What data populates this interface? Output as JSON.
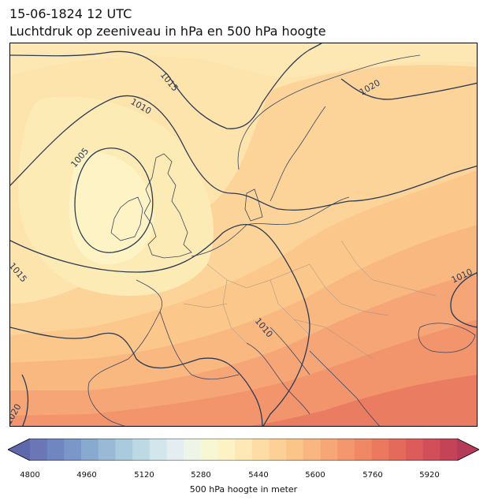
{
  "header": {
    "datetime": "15-06-1824 12 UTC",
    "subtitle": "Luchtdruk op zeeniveau in hPa en 500 hPa hoogte"
  },
  "map": {
    "region": "Europe",
    "fill_variable": "500 hPa geopotential height",
    "contour_variable": "mean sea level pressure (hPa)",
    "isobar_labels": [
      "1015",
      "1010",
      "1005",
      "1020",
      "1015",
      "1010",
      "1010",
      "1020"
    ],
    "contour_color": "#2b3a55",
    "coastline_color": "#3b4660",
    "border_color": "#9a8f86"
  },
  "colorbar": {
    "ticks": [
      "4800",
      "4960",
      "5120",
      "5280",
      "5440",
      "5600",
      "5760",
      "5920"
    ],
    "label": "500 hPa hoogte in meter",
    "colors": [
      "#6a76b6",
      "#6f86c0",
      "#7b97c9",
      "#88aacf",
      "#9ab9d6",
      "#aacbdd",
      "#bcd9e4",
      "#d2e6ec",
      "#e4eef0",
      "#eef5e6",
      "#f7f7d3",
      "#fcf2c4",
      "#fde8b6",
      "#fddda5",
      "#fcd096",
      "#fbc489",
      "#f9b680",
      "#f7a777",
      "#f4976e",
      "#f08866",
      "#eb7960",
      "#e46b5c",
      "#dc5c5a",
      "#d24e58",
      "#c54356"
    ],
    "extend": "both"
  }
}
